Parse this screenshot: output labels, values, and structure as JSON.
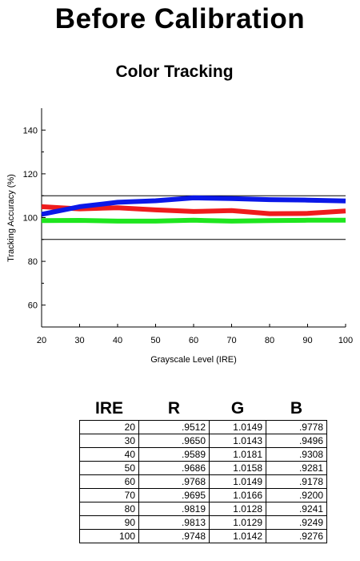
{
  "page": {
    "title": "Before Calibration"
  },
  "chart_data": {
    "type": "line",
    "title": "Color Tracking",
    "xlabel": "Grayscale Level (IRE)",
    "ylabel": "Tracking Accuracy (%)",
    "xlim": [
      20,
      100
    ],
    "ylim": [
      50,
      150
    ],
    "x_ticks": [
      20,
      30,
      40,
      50,
      60,
      70,
      80,
      90,
      100
    ],
    "y_ticks": [
      60,
      80,
      100,
      120,
      140
    ],
    "x": [
      20,
      30,
      40,
      50,
      60,
      70,
      80,
      90,
      100
    ],
    "reference_lines": [
      110,
      90
    ],
    "series": [
      {
        "color": "#0b18e8",
        "values": [
          101.5,
          105,
          107,
          107.7,
          109,
          108.7,
          108.2,
          108,
          107.6
        ]
      },
      {
        "color": "#ee1c1c",
        "values": [
          105,
          104,
          104.5,
          103.5,
          102.8,
          103.2,
          101.8,
          101.9,
          103
        ]
      },
      {
        "color": "#1ee61e",
        "values": [
          98.6,
          98.7,
          98.4,
          98.4,
          98.8,
          98.4,
          98.6,
          98.8,
          98.8
        ]
      }
    ]
  },
  "table": {
    "headers": [
      "IRE",
      "R",
      "G",
      "B"
    ],
    "rows": [
      [
        "20",
        ".9512",
        "1.0149",
        ".9778"
      ],
      [
        "30",
        ".9650",
        "1.0143",
        ".9496"
      ],
      [
        "40",
        ".9589",
        "1.0181",
        ".9308"
      ],
      [
        "50",
        ".9686",
        "1.0158",
        ".9281"
      ],
      [
        "60",
        ".9768",
        "1.0149",
        ".9178"
      ],
      [
        "70",
        ".9695",
        "1.0166",
        ".9200"
      ],
      [
        "80",
        ".9819",
        "1.0128",
        ".9241"
      ],
      [
        "90",
        ".9813",
        "1.0129",
        ".9249"
      ],
      [
        "100",
        ".9748",
        "1.0142",
        ".9276"
      ]
    ]
  }
}
